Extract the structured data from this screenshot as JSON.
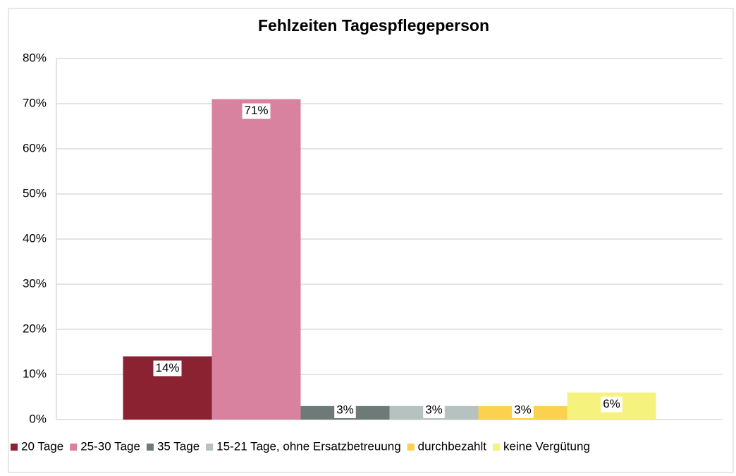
{
  "chart_data": {
    "type": "bar",
    "title": "Fehlzeiten Tagespflegeperson",
    "categories": [
      null
    ],
    "series": [
      {
        "name": "20 Tage",
        "color": "#8b2232",
        "values": [
          14
        ],
        "value_labels": [
          "14%"
        ]
      },
      {
        "name": "25-30 Tage",
        "color": "#d882a0",
        "values": [
          71
        ],
        "value_labels": [
          "71%"
        ]
      },
      {
        "name": "35 Tage",
        "color": "#6e7a78",
        "values": [
          3
        ],
        "value_labels": [
          "3%"
        ]
      },
      {
        "name": "15-21 Tage, ohne Ersatzbetreuung",
        "color": "#b5c2c0",
        "values": [
          3
        ],
        "value_labels": [
          "3%"
        ]
      },
      {
        "name": "durchbezahlt",
        "color": "#fcd14f",
        "values": [
          3
        ],
        "value_labels": [
          "3%"
        ]
      },
      {
        "name": "keine Vergütung",
        "color": "#f5f37e",
        "values": [
          6
        ],
        "value_labels": [
          "6%"
        ]
      }
    ],
    "ylim": [
      0,
      80
    ],
    "yticks": [
      {
        "value": 0,
        "label": "0%"
      },
      {
        "value": 10,
        "label": "10%"
      },
      {
        "value": 20,
        "label": "20%"
      },
      {
        "value": 30,
        "label": "30%"
      },
      {
        "value": 40,
        "label": "40%"
      },
      {
        "value": 50,
        "label": "50%"
      },
      {
        "value": 60,
        "label": "60%"
      },
      {
        "value": 70,
        "label": "70%"
      },
      {
        "value": 80,
        "label": "80%"
      }
    ],
    "grid": true,
    "legend": "bottom"
  }
}
